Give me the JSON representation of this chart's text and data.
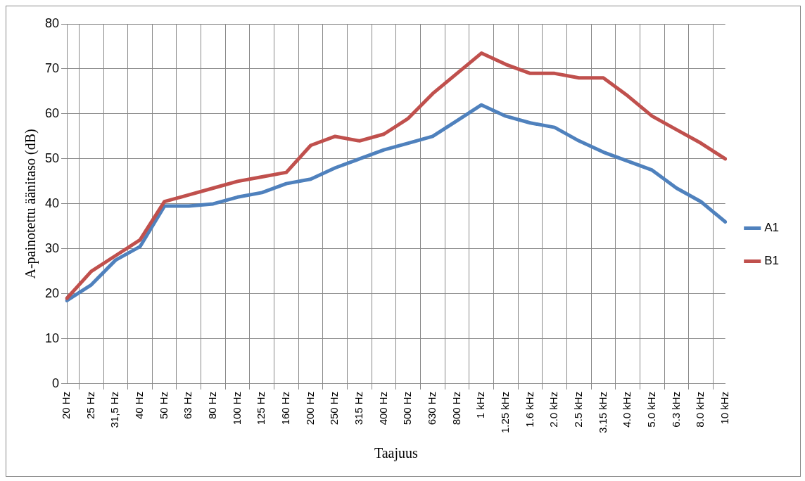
{
  "chart_data": {
    "type": "line",
    "xlabel": "Taajuus",
    "ylabel": "A-painotettu äänitaso (dB)",
    "categories": [
      "20 Hz",
      "25 Hz",
      "31,5 Hz",
      "40 Hz",
      "50 Hz",
      "63 Hz",
      "80 Hz",
      "100 Hz",
      "125 Hz",
      "160 Hz",
      "200 Hz",
      "250 Hz",
      "315 Hz",
      "400 Hz",
      "500 Hz",
      "630 Hz",
      "800 Hz",
      "1 kHz",
      "1.25 kHz",
      "1.6 kHz",
      "2.0 kHz",
      "2.5 kHz",
      "3.15 kHz",
      "4.0 kHz",
      "5.0 kHz",
      "6.3 kHz",
      "8.0 kHz",
      "10 kHz"
    ],
    "series": [
      {
        "name": "B1",
        "color": "#c0504d",
        "values": [
          19,
          25,
          28.5,
          32,
          40.5,
          42,
          43.5,
          45,
          46,
          47,
          53,
          55,
          54,
          55.5,
          59,
          64.5,
          69,
          73.5,
          71,
          69,
          69,
          68,
          68,
          64,
          59.5,
          56.5,
          53.5,
          50
        ]
      },
      {
        "name": "A1",
        "color": "#4f81bd",
        "values": [
          18.5,
          22,
          27.5,
          30.5,
          39.5,
          39.5,
          40,
          41.5,
          42.5,
          44.5,
          45.5,
          48,
          50,
          52,
          53.5,
          55,
          58.5,
          62,
          59.5,
          58,
          57,
          54,
          51.5,
          49.5,
          47.5,
          43.5,
          40.5,
          36
        ]
      }
    ],
    "ylim": [
      0,
      80
    ],
    "yticks": [
      0,
      10,
      20,
      30,
      40,
      50,
      60,
      70,
      80
    ],
    "grid": true,
    "legend": "right",
    "marker": "none",
    "line_style": "solid"
  }
}
